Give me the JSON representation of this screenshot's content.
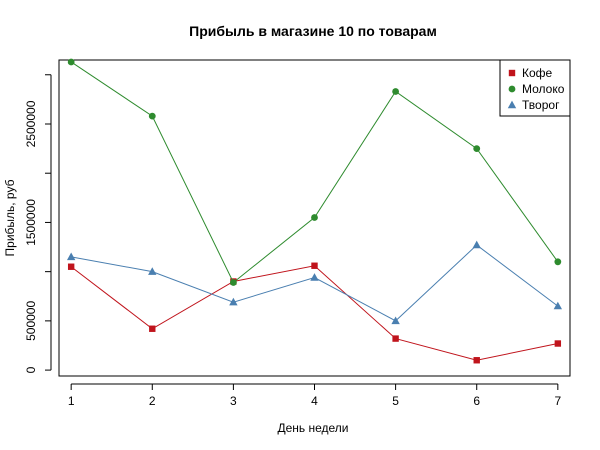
{
  "chart_data": {
    "type": "line",
    "title": "Прибыль в магазине 10 по товарам",
    "xlabel": "День недели",
    "ylabel": "Прибыль, руб",
    "x": [
      1,
      2,
      3,
      4,
      5,
      6,
      7
    ],
    "xlim": [
      0.85,
      7.15
    ],
    "ylim": [
      -60000,
      3150000
    ],
    "y_ticks": [
      0,
      500000,
      1000000,
      1500000,
      2000000,
      2500000,
      3000000
    ],
    "y_tick_labels": [
      "0",
      "500000",
      "",
      "1500000",
      "",
      "2500000",
      ""
    ],
    "grid": false,
    "legend_position": "top-right",
    "series": [
      {
        "name": "Кофе",
        "color": "#c0141c",
        "marker": "square",
        "values": [
          1050000,
          420000,
          900000,
          1060000,
          320000,
          100000,
          270000
        ]
      },
      {
        "name": "Молоко",
        "color": "#2e8b2e",
        "marker": "circle",
        "values": [
          3130000,
          2580000,
          890000,
          1550000,
          2830000,
          2250000,
          1100000
        ]
      },
      {
        "name": "Творог",
        "color": "#4a7fb0",
        "marker": "triangle",
        "values": [
          1150000,
          1000000,
          690000,
          940000,
          500000,
          1270000,
          650000
        ]
      }
    ]
  }
}
